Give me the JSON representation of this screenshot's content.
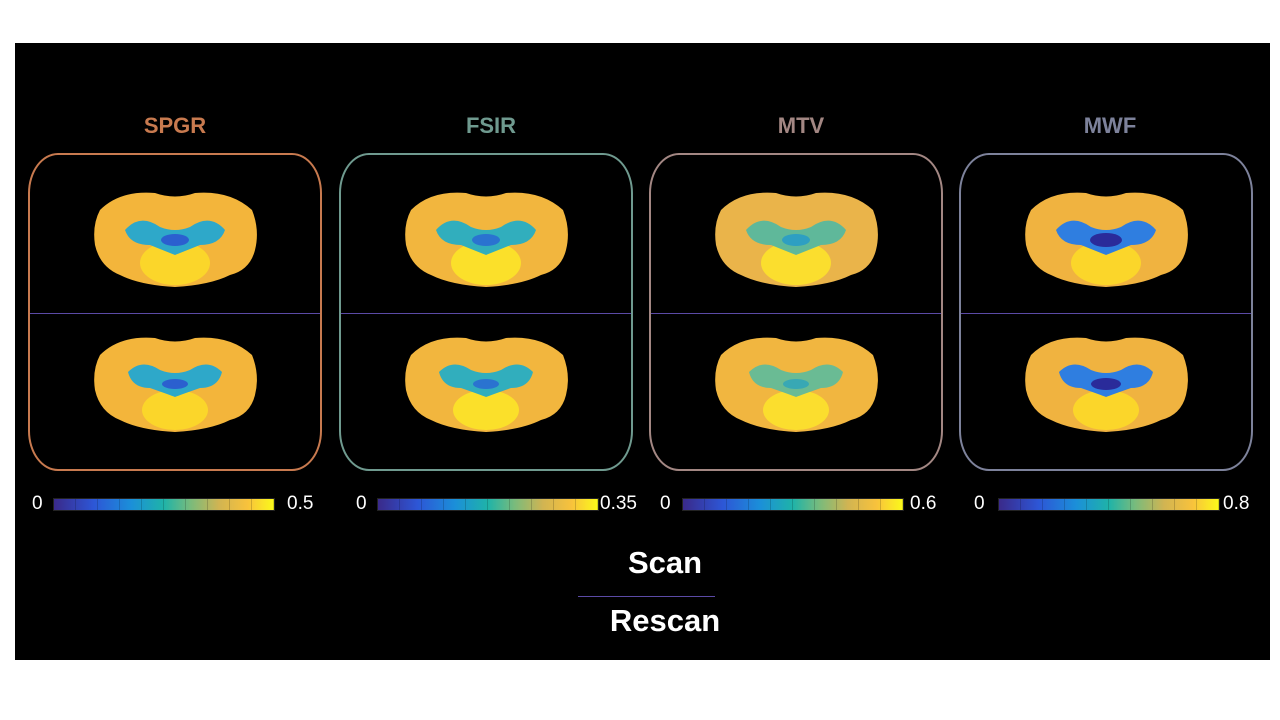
{
  "panels": [
    {
      "title": "SPGR",
      "color": "#c87a4f",
      "min": "0",
      "max": "0.5"
    },
    {
      "title": "FSIR",
      "color": "#6f9a8f",
      "min": "0",
      "max": "0.35"
    },
    {
      "title": "MTV",
      "color": "#a38783",
      "min": "0",
      "max": "0.6"
    },
    {
      "title": "MWF",
      "color": "#7d829b",
      "min": "0",
      "max": "0.8"
    }
  ],
  "legend": {
    "top": "Scan",
    "bottom": "Rescan"
  }
}
